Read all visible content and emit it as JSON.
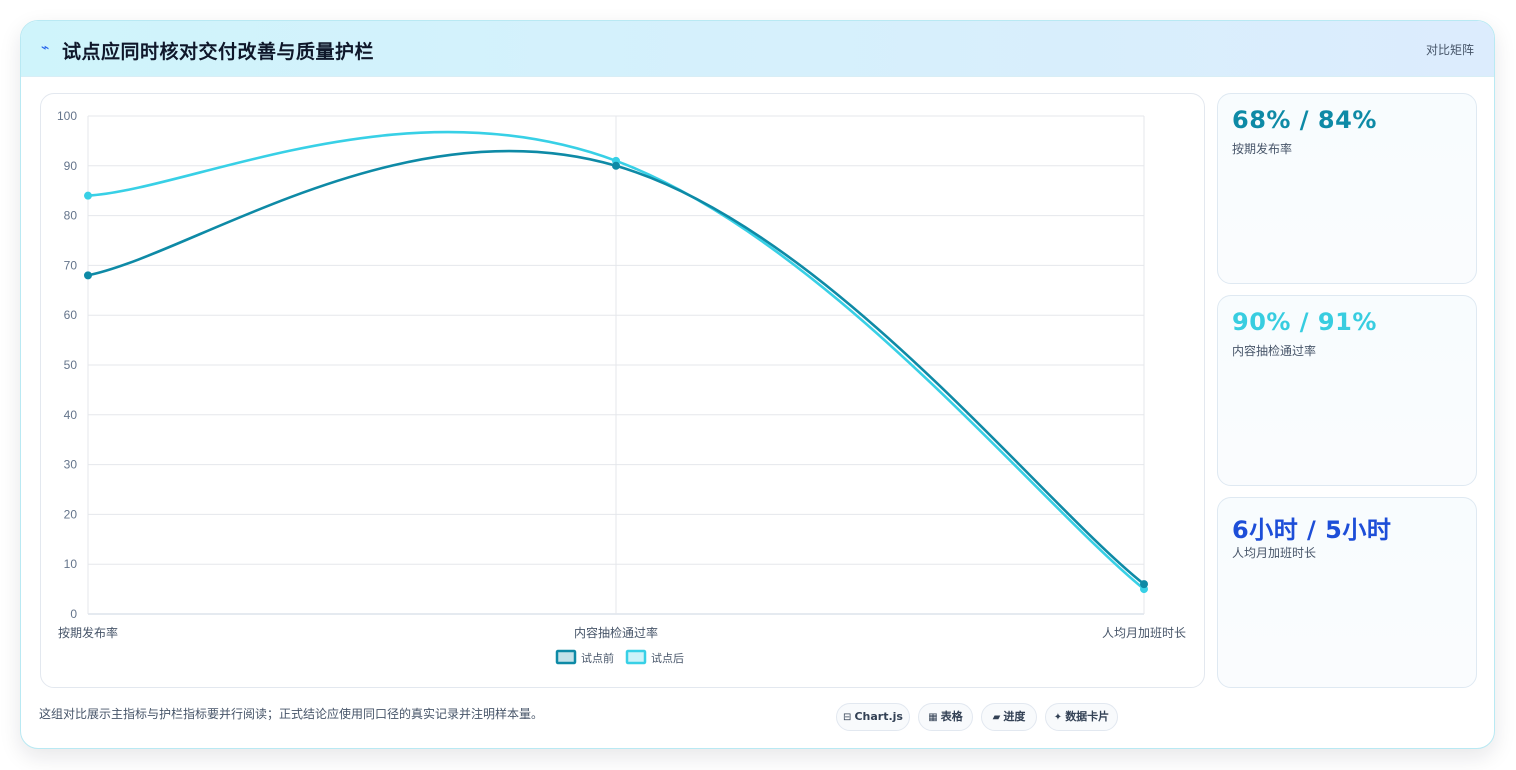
{
  "header": {
    "icon": "lightning-icon",
    "title": "试点应同时核对交付改善与质量护栏",
    "tag": "对比矩阵"
  },
  "colors": {
    "before": "#0e8aa6",
    "after": "#38d0e6",
    "metric_1": "#0e8aa6",
    "metric_2": "#38cde0",
    "metric_3": "#1d4ed8"
  },
  "chart_data": {
    "type": "line",
    "categories": [
      "按期发布率",
      "内容抽检通过率",
      "人均月加班时长"
    ],
    "series": [
      {
        "name": "试点前",
        "values": [
          68,
          90,
          6
        ]
      },
      {
        "name": "试点后",
        "values": [
          84,
          91,
          5
        ]
      }
    ],
    "ylim": [
      0,
      100
    ],
    "yticks": [
      0,
      10,
      20,
      30,
      40,
      50,
      60,
      70,
      80,
      90,
      100
    ],
    "grid": true,
    "legend_position": "bottom",
    "smooth": true
  },
  "metrics": [
    {
      "value": "68% / 84%",
      "label": "按期发布率"
    },
    {
      "value": "90% / 91%",
      "label": "内容抽检通过率"
    },
    {
      "value": "6小时 / 5小时",
      "label": "人均月加班时长"
    }
  ],
  "note": "这组对比展示主指标与护栏指标要并行阅读；正式结论应使用同口径的真实记录并注明样本量。",
  "pills": [
    {
      "icon": "chart-icon",
      "glyph": "⊟",
      "label": "Chart.js"
    },
    {
      "icon": "table-icon",
      "glyph": "▦",
      "label": "表格"
    },
    {
      "icon": "progress-icon",
      "glyph": "▰",
      "label": "进度"
    },
    {
      "icon": "card-icon",
      "glyph": "✦",
      "label": "数据卡片"
    }
  ]
}
